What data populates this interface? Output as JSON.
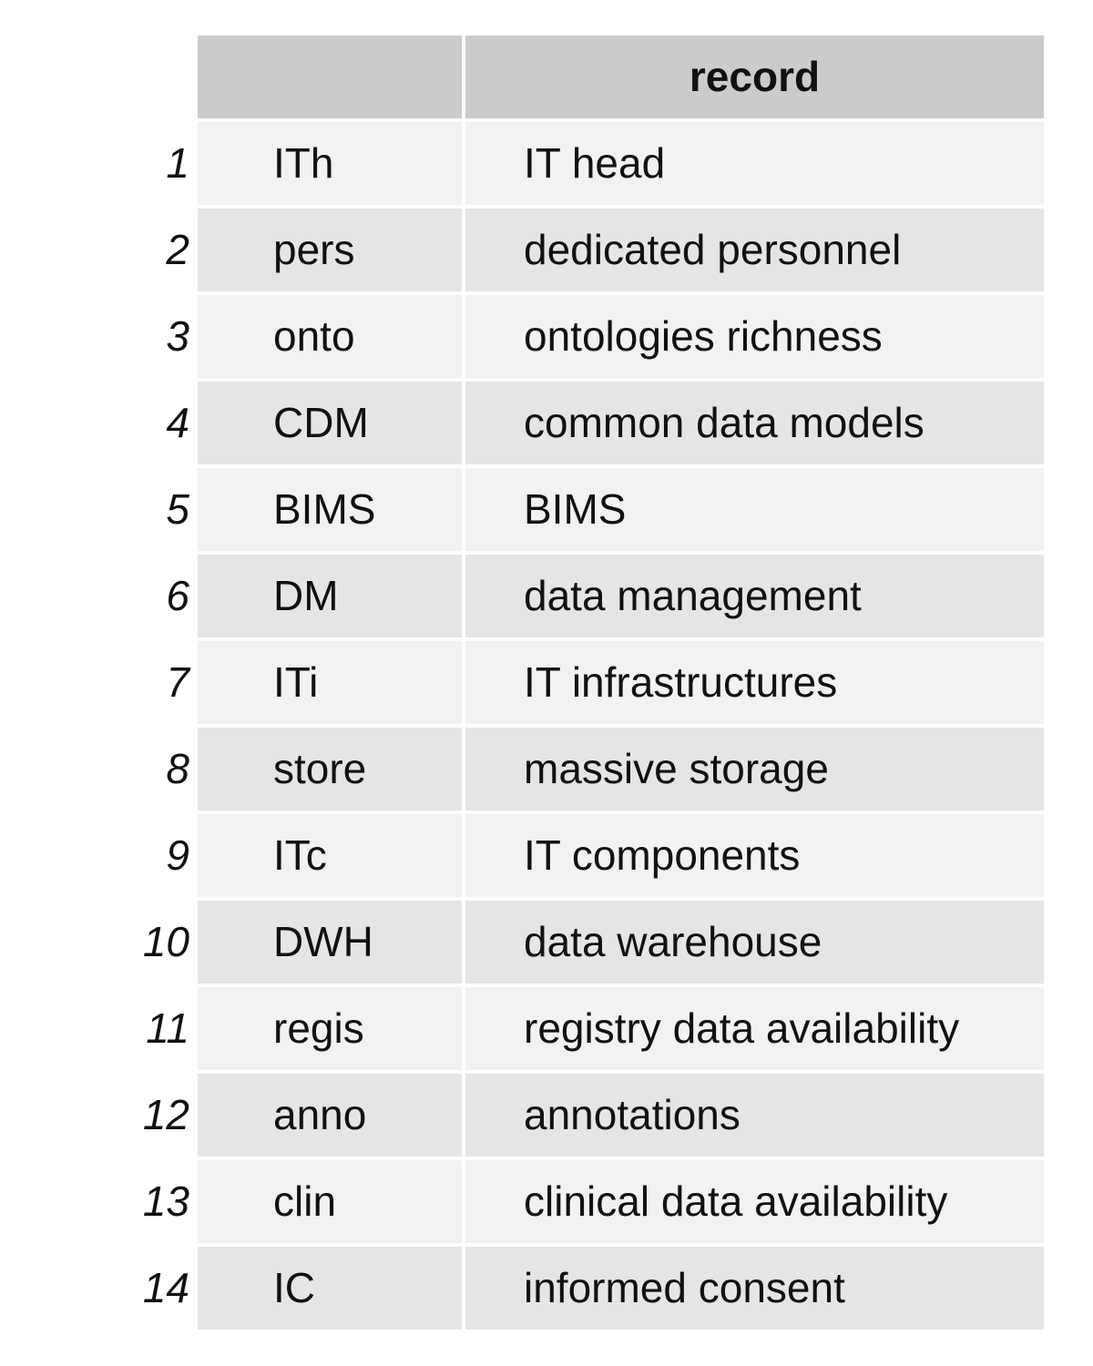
{
  "header": {
    "col1": "",
    "col2": "record"
  },
  "rows": [
    {
      "index": "1",
      "code": "ITh",
      "record": "IT head"
    },
    {
      "index": "2",
      "code": "pers",
      "record": "dedicated personnel"
    },
    {
      "index": "3",
      "code": "onto",
      "record": "ontologies richness"
    },
    {
      "index": "4",
      "code": "CDM",
      "record": "common data models"
    },
    {
      "index": "5",
      "code": "BIMS",
      "record": "BIMS"
    },
    {
      "index": "6",
      "code": "DM",
      "record": "data management"
    },
    {
      "index": "7",
      "code": "ITi",
      "record": "IT infrastructures"
    },
    {
      "index": "8",
      "code": "store",
      "record": "massive storage"
    },
    {
      "index": "9",
      "code": "ITc",
      "record": "IT components"
    },
    {
      "index": "10",
      "code": "DWH",
      "record": "data warehouse"
    },
    {
      "index": "11",
      "code": "regis",
      "record": "registry data availability"
    },
    {
      "index": "12",
      "code": "anno",
      "record": "annotations"
    },
    {
      "index": "13",
      "code": "clin",
      "record": "clinical data availability"
    },
    {
      "index": "14",
      "code": "IC",
      "record": "informed consent"
    }
  ],
  "colors": {
    "header_bg": "#cbcbcb",
    "row_odd_bg": "#f2f2f2",
    "row_even_bg": "#e5e5e5"
  }
}
